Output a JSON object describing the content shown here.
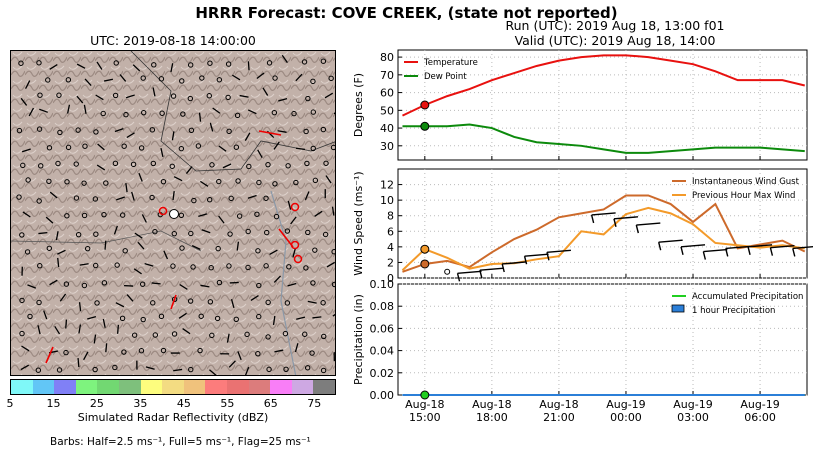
{
  "title": "HRRR Forecast: COVE CREEK, (state not reported)",
  "run_text": "Run (UTC): 2019 Aug 18, 13:00 f01",
  "valid_text": "Valid (UTC): 2019 Aug 18, 14:00",
  "map_title": "UTC: 2019-08-18 14:00:00",
  "colorbar": {
    "label": "Simulated Radar Reflectivity (dBZ)",
    "ticks": [
      "5",
      "15",
      "25",
      "35",
      "45",
      "55",
      "65",
      "75"
    ],
    "colors": [
      "#7ff8f8",
      "#62c6f6",
      "#8080f6",
      "#7ef37e",
      "#72d872",
      "#7ec07c",
      "#fdfd7e",
      "#f3dc82",
      "#f0c27c",
      "#fc7c7c",
      "#ea7272",
      "#dc7c7c",
      "#f97ef7",
      "#cea8e3",
      "#7d7d7d"
    ]
  },
  "barbs_note": "Barbs: Half=2.5 ms⁻¹, Full=5 ms⁻¹, Flag=25 ms⁻¹",
  "chart_data": [
    {
      "type": "line",
      "panel": "temperature",
      "ylabel": "Degrees (F)",
      "ylim": [
        22,
        84
      ],
      "yticks": [
        30,
        40,
        50,
        60,
        70,
        80
      ],
      "x_hours": [
        0,
        1,
        2,
        3,
        4,
        5,
        6,
        7,
        8,
        9,
        10,
        11,
        12,
        13,
        14,
        15,
        16,
        17,
        18
      ],
      "series": [
        {
          "name": "Temperature",
          "color": "#e8110f",
          "values": [
            47,
            53,
            58,
            62,
            67,
            71,
            75,
            78,
            80,
            81,
            81,
            80,
            78,
            76,
            72,
            67,
            67,
            67,
            64
          ]
        },
        {
          "name": "Dew Point",
          "color": "#0c8a0c",
          "values": [
            41,
            41,
            41,
            42,
            40,
            35,
            32,
            31,
            30,
            28,
            26,
            26,
            27,
            28,
            29,
            29,
            29,
            28,
            27
          ]
        }
      ],
      "markers": [
        {
          "series": "Temperature",
          "x": 1,
          "y": 53
        },
        {
          "series": "Dew Point",
          "x": 1,
          "y": 41
        }
      ],
      "legend": "top-left",
      "grid": true
    },
    {
      "type": "line",
      "panel": "wind",
      "ylabel": "Wind Speed (ms⁻¹)",
      "ylim": [
        0,
        14
      ],
      "yticks": [
        0,
        2,
        4,
        6,
        8,
        10,
        12
      ],
      "x_hours": [
        0,
        1,
        2,
        3,
        4,
        5,
        6,
        7,
        8,
        9,
        10,
        11,
        12,
        13,
        14,
        15,
        16,
        17,
        18
      ],
      "series": [
        {
          "name": "Instantaneous Wind Gust",
          "color": "#cd6a2b",
          "values": [
            0.8,
            1.8,
            2.2,
            1.4,
            3.3,
            5.0,
            6.2,
            7.8,
            8.3,
            8.8,
            10.6,
            10.6,
            9.5,
            7.2,
            9.5,
            3.8,
            4.3,
            4.8,
            3.4
          ]
        },
        {
          "name": "Previous Hour Max Wind",
          "color": "#f39a2a",
          "values": [
            1.0,
            3.7,
            2.6,
            1.2,
            1.8,
            1.9,
            2.4,
            2.8,
            6.0,
            5.6,
            8.2,
            9.0,
            8.3,
            6.9,
            4.5,
            4.2,
            3.9,
            4.2,
            3.8
          ]
        }
      ],
      "markers": [
        {
          "series": "Previous Hour Max Wind",
          "x": 1,
          "y": 3.7
        },
        {
          "series": "Instantaneous Wind Gust",
          "x": 1,
          "y": 1.8
        }
      ],
      "legend": "top-right",
      "grid": true
    },
    {
      "type": "line",
      "panel": "precipitation",
      "ylabel": "Precipitation (in)",
      "ylim": [
        0,
        0.1
      ],
      "yticks": [
        "0.00",
        "0.02",
        "0.04",
        "0.06",
        "0.08",
        "0.10"
      ],
      "x_hours": [
        0,
        18
      ],
      "series": [
        {
          "name": "Accumulated Precipitation",
          "color": "#20cf20",
          "values": [
            0,
            0
          ]
        },
        {
          "name": "1 hour Precipitation",
          "color": "#2b7fd8",
          "values": [
            0,
            0
          ]
        }
      ],
      "markers": [
        {
          "series": "Accumulated Precipitation",
          "x": 1,
          "y": 0
        }
      ],
      "legend": "top-right",
      "grid": true
    }
  ],
  "x_axis": {
    "start": "2019-08-18T14:00",
    "ticks": [
      {
        "hour": 1,
        "line1": "Aug-18",
        "line2": "15:00"
      },
      {
        "hour": 4,
        "line1": "Aug-18",
        "line2": "18:00"
      },
      {
        "hour": 7,
        "line1": "Aug-18",
        "line2": "21:00"
      },
      {
        "hour": 10,
        "line1": "Aug-19",
        "line2": "00:00"
      },
      {
        "hour": 13,
        "line1": "Aug-19",
        "line2": "03:00"
      },
      {
        "hour": 16,
        "line1": "Aug-19",
        "line2": "06:00"
      }
    ]
  }
}
